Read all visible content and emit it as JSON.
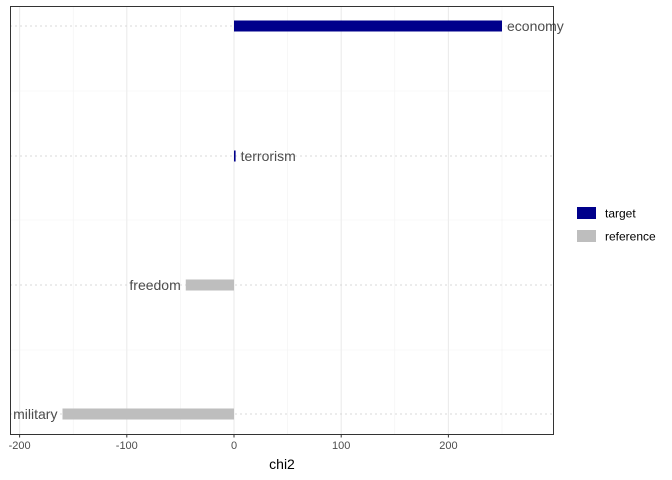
{
  "chart_data": {
    "type": "bar",
    "orientation": "horizontal",
    "categories": [
      "economy",
      "terrorism",
      "freedom",
      "military"
    ],
    "values": [
      250,
      1.5,
      -45,
      -160
    ],
    "groups": [
      "target",
      "target",
      "reference",
      "reference"
    ],
    "xlabel": "chi2",
    "ylabel": "",
    "xlim": [
      -205,
      297
    ],
    "xticks": [
      -200,
      -100,
      0,
      100,
      200
    ],
    "xtick_labels": [
      "-200",
      "-100",
      "0",
      "100",
      "200"
    ],
    "grid": true,
    "legend": {
      "placement": "right",
      "entries": [
        {
          "name": "target",
          "color": "#00008b"
        },
        {
          "name": "reference",
          "color": "#bebebe"
        }
      ]
    }
  }
}
